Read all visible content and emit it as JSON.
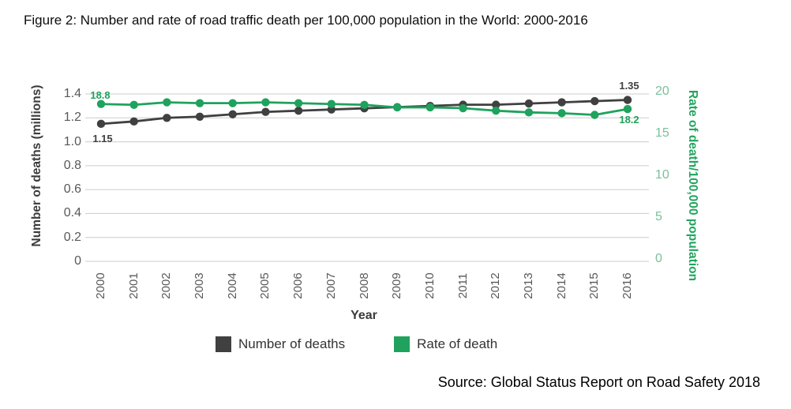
{
  "figure_title": "Figure 2: Number and rate of road traffic death per 100,000 population in the World: 2000-2016",
  "source_note": "Source: Global Status Report on Road Safety 2018",
  "colors": {
    "grid_line": "#cccccc",
    "tick_text": "#57585a",
    "right_tick_text": "#7cbf9b",
    "axis_title_text": "#3b3b3b",
    "right_axis_title_text": "#21a55e",
    "deaths_series": "#404040",
    "rate_series": "#1fa25d"
  },
  "chart_data": {
    "type": "line",
    "title": "Figure 2: Number and rate of road traffic death per 100,000 population in the World: 2000-2016",
    "grid": true,
    "legend_position": "bottom",
    "categories": [
      "2000",
      "2001",
      "2002",
      "2003",
      "2004",
      "2005",
      "2006",
      "2007",
      "2008",
      "2009",
      "2010",
      "2011",
      "2012",
      "2013",
      "2014",
      "2015",
      "2016"
    ],
    "x_axis": {
      "label": "Year"
    },
    "left_axis": {
      "label": "Number of deaths (millions)",
      "min": 0,
      "max": 1.4,
      "ticks": [
        "0",
        "0.2",
        "0.4",
        "0.6",
        "0.8",
        "1.0",
        "1.2",
        "1.4"
      ]
    },
    "right_axis": {
      "label": "Rate of death/100,000 population",
      "min": 0,
      "max": 20,
      "ticks": [
        "0",
        "5",
        "10",
        "15",
        "20"
      ]
    },
    "series": [
      {
        "name": "Number of deaths",
        "axis": "left",
        "color": "#404040",
        "values": [
          1.15,
          1.17,
          1.2,
          1.21,
          1.23,
          1.25,
          1.26,
          1.27,
          1.28,
          1.29,
          1.3,
          1.31,
          1.31,
          1.32,
          1.33,
          1.34,
          1.35
        ],
        "start_annotation": "1.15",
        "end_annotation": "1.35"
      },
      {
        "name": "Rate of death",
        "axis": "right",
        "color": "#1fa25d",
        "values": [
          18.8,
          18.7,
          19.0,
          18.9,
          18.9,
          19.0,
          18.9,
          18.8,
          18.7,
          18.4,
          18.4,
          18.3,
          18.0,
          17.8,
          17.7,
          17.5,
          18.2
        ],
        "start_annotation": "18.8",
        "end_annotation": "18.2"
      }
    ]
  }
}
